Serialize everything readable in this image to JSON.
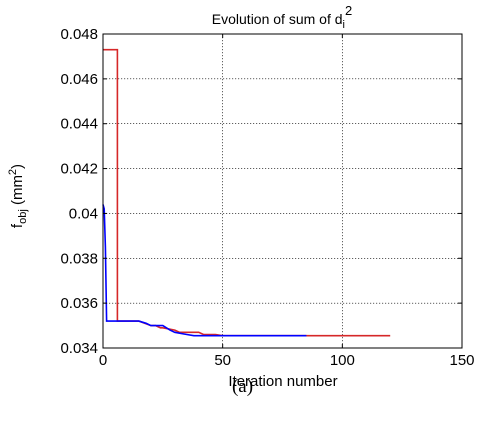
{
  "chart_data": {
    "type": "line",
    "title": "Evolution of sum of d",
    "title_sub": "i",
    "title_sup": "2",
    "xlabel": "Iteration number",
    "ylabel": {
      "main": "f",
      "sub": "obj",
      "unit_open": " (mm",
      "unit_sup": "2",
      "unit_close": ")"
    },
    "xlim": [
      0,
      150
    ],
    "ylim": [
      0.034,
      0.048
    ],
    "x_ticks": [
      "0",
      "50",
      "100",
      "150"
    ],
    "y_ticks": [
      "0.034",
      "0.036",
      "0.038",
      "0.04",
      "0.042",
      "0.044",
      "0.046",
      "0.048"
    ],
    "grid": true,
    "series": [
      {
        "color": "#d62728",
        "x": [
          0,
          6,
          6,
          9,
          15,
          20,
          22,
          24,
          25,
          30,
          32,
          40,
          42,
          47,
          50,
          120
        ],
        "y": [
          0.0473,
          0.0473,
          0.0352,
          0.0352,
          0.0352,
          0.035,
          0.035,
          0.0349,
          0.0349,
          0.0348,
          0.0347,
          0.0347,
          0.0346,
          0.0346,
          0.03455,
          0.03455
        ]
      },
      {
        "color": "#0000ff",
        "x": [
          0,
          0.5,
          1,
          1.5,
          2,
          3,
          10,
          15,
          18,
          20,
          25,
          28,
          30,
          35,
          38,
          40,
          45,
          85
        ],
        "y": [
          0.0404,
          0.0402,
          0.0385,
          0.0352,
          0.0352,
          0.0352,
          0.0352,
          0.0352,
          0.0351,
          0.035,
          0.035,
          0.0348,
          0.0347,
          0.0346,
          0.03455,
          0.03455,
          0.03455,
          0.03455
        ]
      }
    ]
  },
  "caption": "(a)"
}
